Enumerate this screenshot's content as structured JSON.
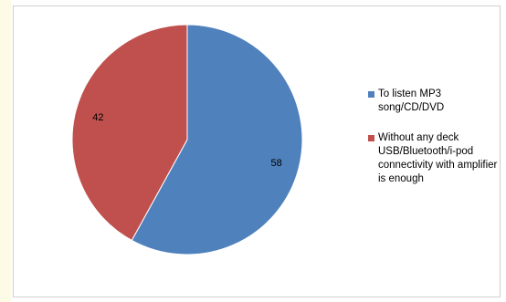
{
  "chart_data": {
    "type": "pie",
    "title": "",
    "start_angle_deg": 0,
    "direction": "clockwise",
    "legend_position": "right",
    "slices": [
      {
        "label": "To listen MP3 song/CD/DVD",
        "value": 58,
        "color": "#4f81bd"
      },
      {
        "label": "Without any deck USB/Bluetooth/i-pod connectivity with amplifier is enough",
        "value": 42,
        "color": "#c0504d"
      }
    ]
  }
}
